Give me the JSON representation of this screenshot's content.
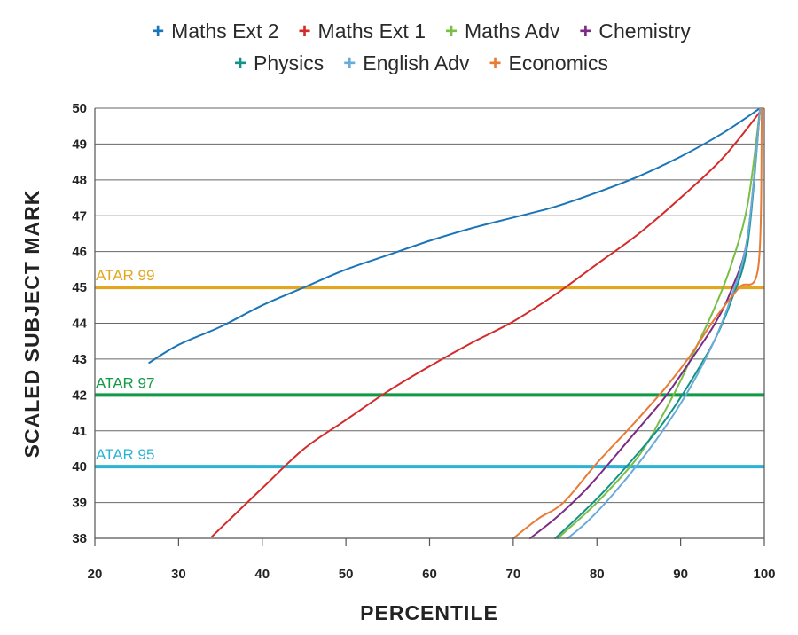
{
  "chart_data": {
    "type": "line",
    "title": "",
    "xlabel": "PERCENTILE",
    "ylabel": "SCALED SUBJECT MARK",
    "xlim": [
      20,
      100
    ],
    "ylim": [
      38,
      50
    ],
    "xticks": [
      20,
      30,
      40,
      50,
      60,
      70,
      80,
      90,
      100
    ],
    "yticks": [
      38,
      39,
      40,
      41,
      42,
      43,
      44,
      45,
      46,
      47,
      48,
      49,
      50
    ],
    "grid": "horizontal",
    "legend_position": "top",
    "reference_lines": [
      {
        "label": "ATAR 99",
        "y": 45,
        "color": "#E3A71F"
      },
      {
        "label": "ATAR 97",
        "y": 42,
        "color": "#129A46"
      },
      {
        "label": "ATAR 95",
        "y": 40,
        "color": "#2BB3D6"
      }
    ],
    "series": [
      {
        "name": "Maths Ext 2",
        "color": "#1B75B8",
        "x": [
          26.5,
          30,
          35,
          40,
          45,
          50,
          55,
          60,
          65,
          70,
          75,
          80,
          85,
          90,
          95,
          99.5
        ],
        "y": [
          42.9,
          43.4,
          43.9,
          44.5,
          45.0,
          45.5,
          45.9,
          46.3,
          46.65,
          46.95,
          47.25,
          47.65,
          48.1,
          48.65,
          49.3,
          50.0
        ]
      },
      {
        "name": "Maths Ext 1",
        "color": "#D42A2A",
        "x": [
          34,
          40,
          45,
          50,
          55,
          60,
          65,
          70,
          75,
          80,
          85,
          90,
          95,
          99.5
        ],
        "y": [
          38.05,
          39.4,
          40.5,
          41.3,
          42.1,
          42.8,
          43.45,
          44.05,
          44.8,
          45.65,
          46.5,
          47.5,
          48.6,
          49.9
        ]
      },
      {
        "name": "Maths Adv",
        "color": "#79BE45",
        "x": [
          75.3,
          80,
          85,
          88,
          90,
          92,
          94,
          96,
          98,
          99.5
        ],
        "y": [
          38.0,
          39.0,
          40.3,
          41.5,
          42.4,
          43.4,
          44.4,
          45.6,
          47.3,
          50.0
        ]
      },
      {
        "name": "Chemistry",
        "color": "#7B2A86",
        "x": [
          72,
          75,
          78,
          80,
          84,
          88,
          91,
          94,
          96,
          98,
          99.5
        ],
        "y": [
          38.0,
          38.55,
          39.2,
          39.7,
          40.8,
          41.9,
          42.9,
          43.95,
          44.9,
          46.4,
          50.0
        ]
      },
      {
        "name": "Physics",
        "color": "#12938A",
        "x": [
          75,
          78,
          81,
          85,
          88,
          91,
          94,
          96,
          98,
          99.5
        ],
        "y": [
          38.0,
          38.65,
          39.35,
          40.4,
          41.25,
          42.3,
          43.5,
          44.6,
          46.2,
          50.0
        ]
      },
      {
        "name": "English Adv",
        "color": "#6AAAD8",
        "x": [
          76.5,
          79,
          82,
          85,
          88,
          91,
          94,
          96,
          98,
          99.5
        ],
        "y": [
          38.0,
          38.5,
          39.25,
          40.1,
          41.05,
          42.15,
          43.5,
          44.7,
          46.4,
          50.0
        ]
      },
      {
        "name": "Economics",
        "color": "#E87B35",
        "x": [
          70,
          73,
          76,
          80,
          84,
          88,
          91,
          94,
          97,
          99.3,
          99.7
        ],
        "y": [
          38.0,
          38.55,
          39.0,
          40.1,
          41.1,
          42.15,
          43.05,
          44.1,
          45.0,
          45.6,
          50.0
        ]
      }
    ]
  }
}
